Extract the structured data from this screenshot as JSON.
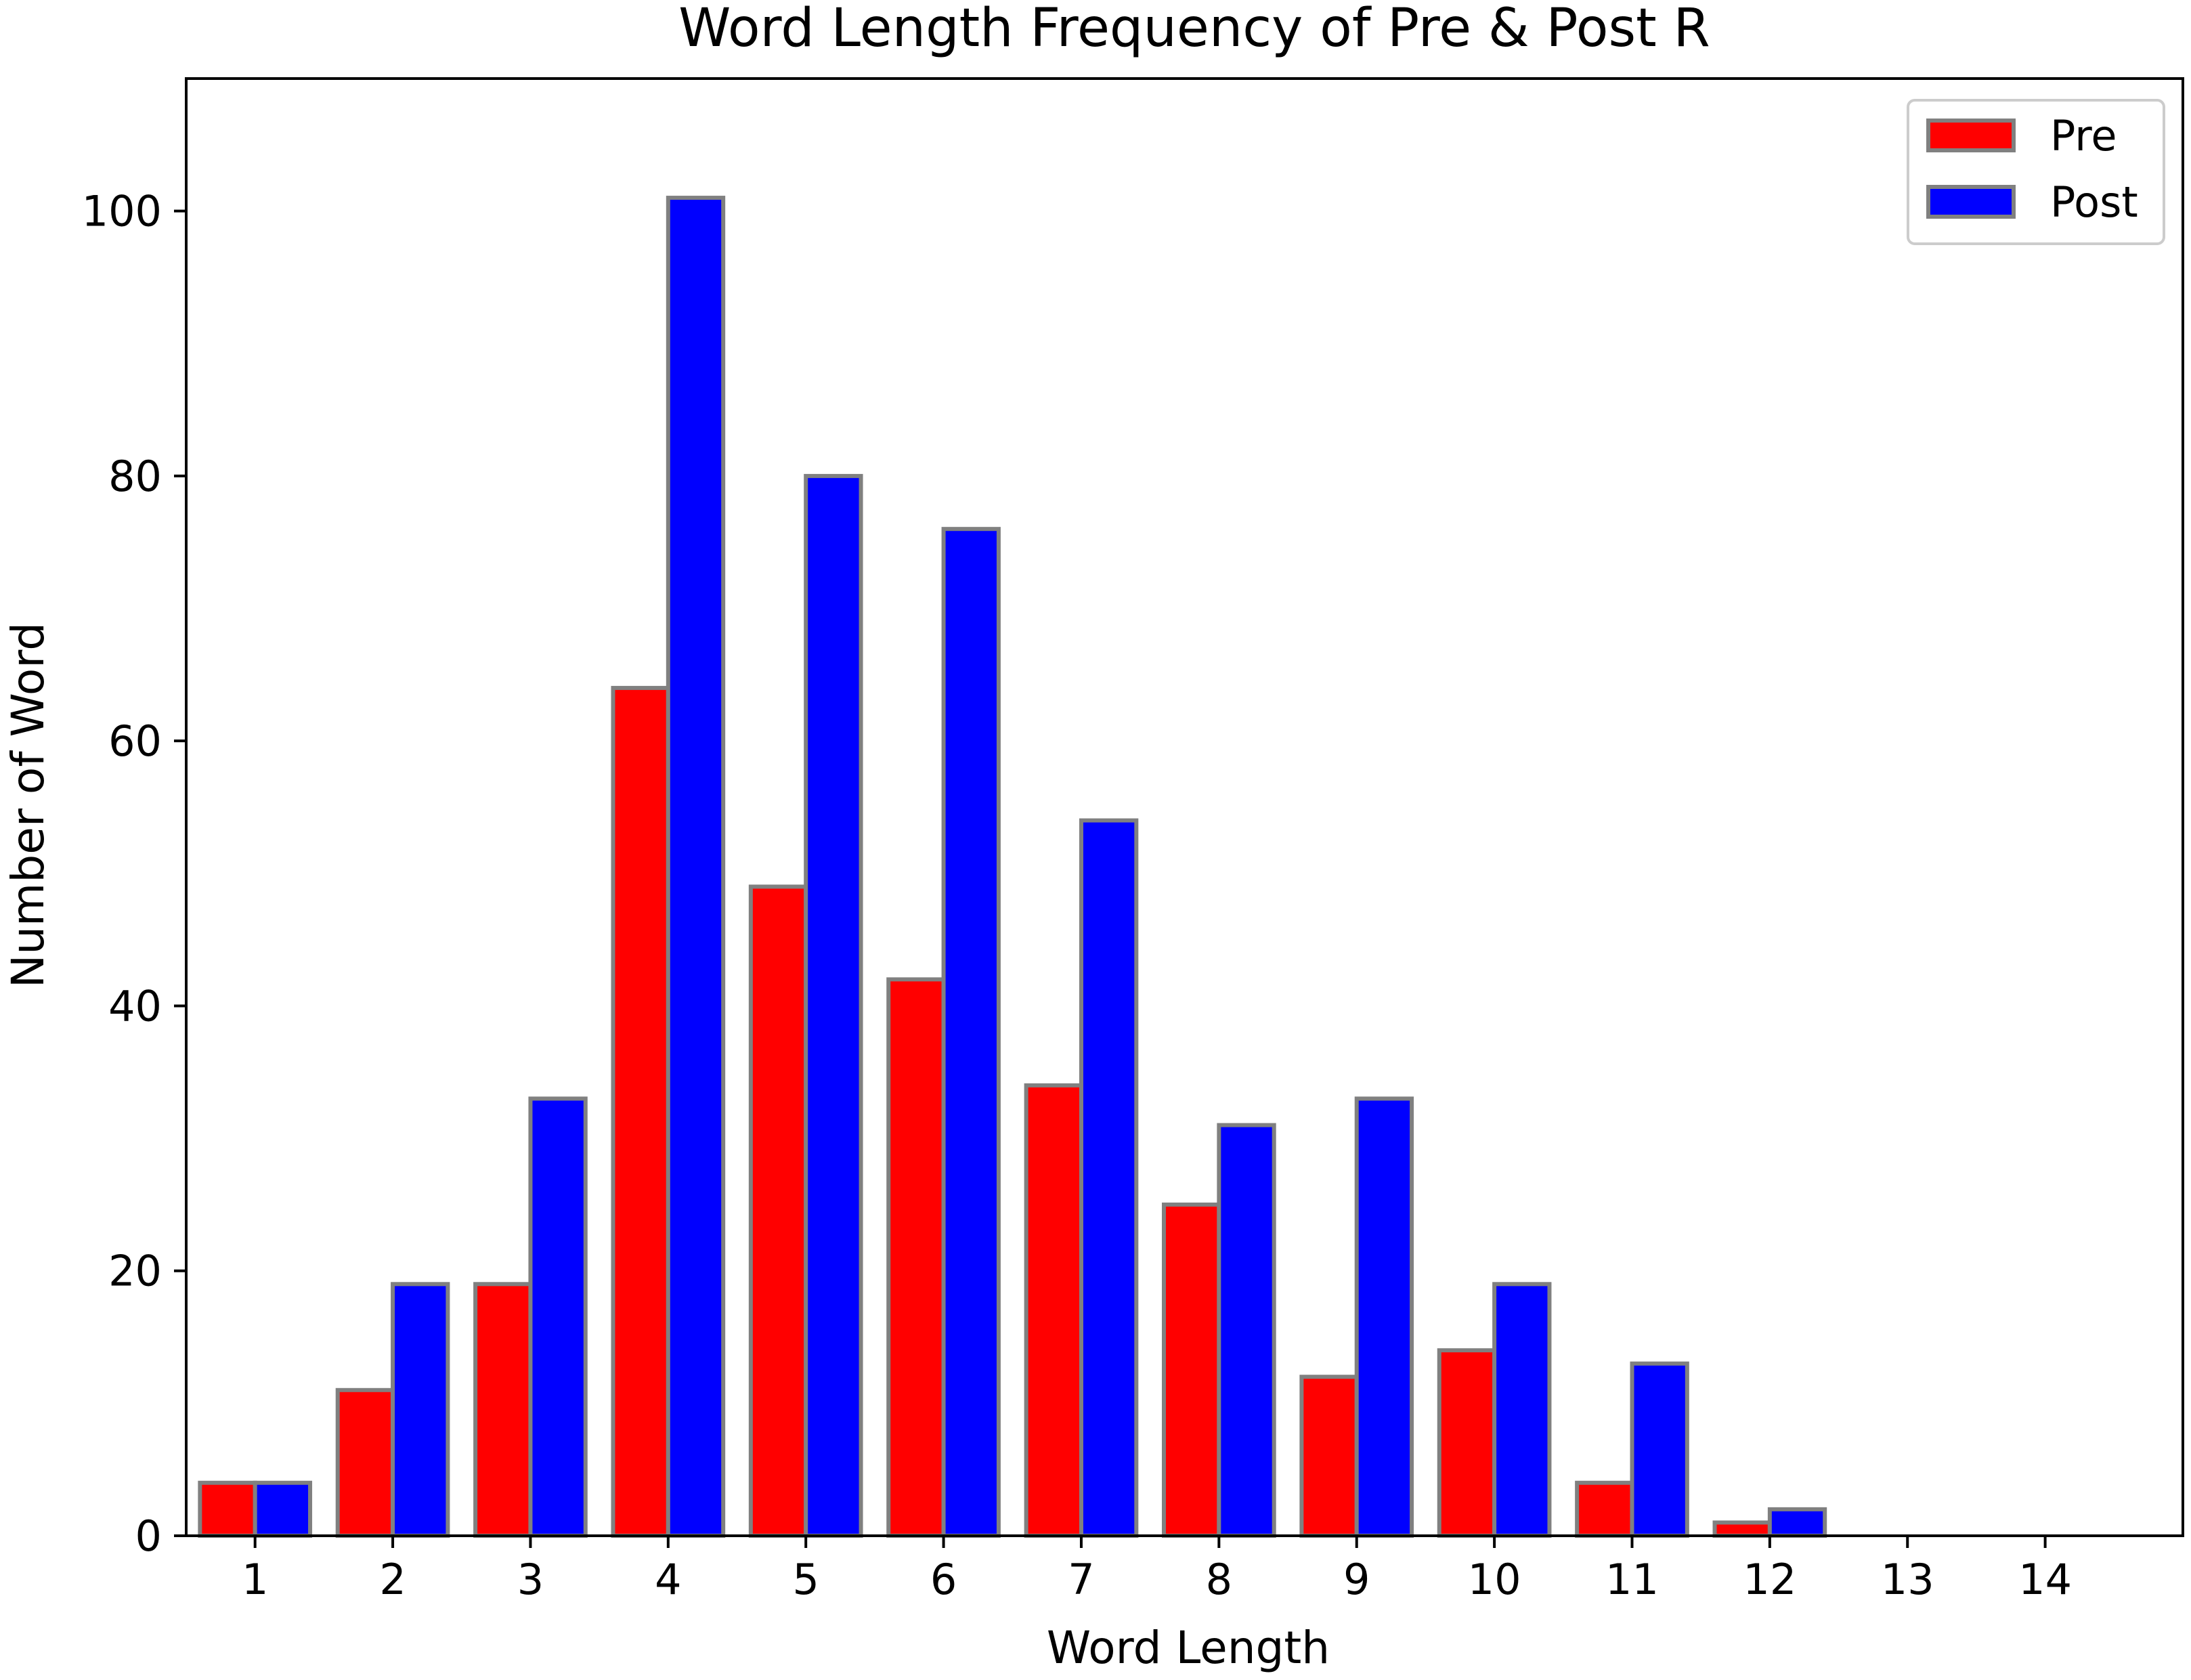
{
  "chart_data": {
    "type": "bar",
    "title": "Word Length Frequency of Pre & Post R",
    "xlabel": "Word Length",
    "ylabel": "Number of Word",
    "categories": [
      "1",
      "2",
      "3",
      "4",
      "5",
      "6",
      "7",
      "8",
      "9",
      "10",
      "11",
      "12",
      "13",
      "14"
    ],
    "series": [
      {
        "name": "Pre",
        "color": "#ff0000",
        "values": [
          4,
          11,
          19,
          64,
          49,
          42,
          34,
          25,
          12,
          14,
          4,
          1,
          0,
          0
        ]
      },
      {
        "name": "Post",
        "color": "#0000ff",
        "values": [
          4,
          19,
          33,
          101,
          80,
          76,
          54,
          31,
          33,
          19,
          13,
          2,
          0,
          0
        ]
      }
    ],
    "ylim": [
      0,
      110
    ],
    "xlim": [
      -0.5,
      14.0
    ],
    "yticks": [
      0,
      20,
      40,
      60,
      80,
      100
    ],
    "bar_edge_color": "#808080",
    "grid": false,
    "legend_position": "top-right"
  }
}
